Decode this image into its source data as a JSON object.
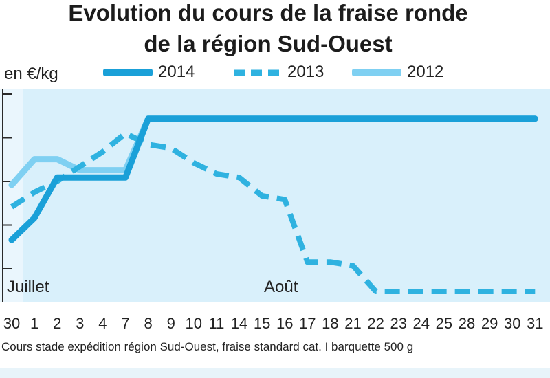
{
  "colors": {
    "s2014": "#1aa0d8",
    "s2013": "#2fb2e0",
    "s2012": "#7fd0f2",
    "plot_bg": "#d9f0fb",
    "gridline": "#2a2a2a"
  },
  "chart_data": {
    "type": "line",
    "title": "Evolution du cours de la fraise ronde de la région Sud-Ouest",
    "title_lines": [
      "Evolution du cours de la fraise ronde",
      "de la région Sud-Ouest"
    ],
    "ylabel": "en €/kg",
    "note": "Cours stade expédition région Sud-Ouest, fraise standard cat. I barquette 500 g",
    "month_labels": [
      {
        "label": "Juillet",
        "at": "30"
      },
      {
        "label": "Août",
        "at": "15"
      }
    ],
    "categories": [
      "30",
      "1",
      "2",
      "3",
      "4",
      "7",
      "8",
      "9",
      "10",
      "11",
      "14",
      "15",
      "16",
      "17",
      "18",
      "21",
      "22",
      "23",
      "24",
      "25",
      "28",
      "29",
      "30",
      "31"
    ],
    "y_tick_count": 5,
    "grid": false,
    "legend_position": "top",
    "series": [
      {
        "name": "2014",
        "style": "solid",
        "color_key": "s2014",
        "values": [
          1.7,
          2.3,
          3.4,
          3.4,
          3.4,
          3.4,
          5.0,
          5.0,
          5.0,
          5.0,
          5.0,
          5.0,
          5.0,
          5.0,
          5.0,
          5.0,
          5.0,
          5.0,
          5.0,
          5.0,
          5.0,
          5.0,
          5.0,
          5.0
        ]
      },
      {
        "name": "2013",
        "style": "dashed",
        "color_key": "s2013",
        "values": [
          2.6,
          3.0,
          3.3,
          3.7,
          4.1,
          4.6,
          4.3,
          4.2,
          3.8,
          3.5,
          3.4,
          2.9,
          2.8,
          1.1,
          1.1,
          1.0,
          0.3,
          0.3,
          0.3,
          0.3,
          0.3,
          0.3,
          0.3,
          0.3
        ]
      },
      {
        "name": "2012",
        "style": "solid",
        "color_key": "s2012",
        "values": [
          3.2,
          3.9,
          3.9,
          3.6,
          3.6,
          3.6,
          5.0,
          5.0,
          5.0,
          5.0,
          5.0,
          5.0,
          5.0,
          5.0,
          5.0,
          5.0,
          5.0,
          5.0,
          5.0,
          5.0,
          5.0,
          5.0,
          5.0,
          5.0
        ]
      }
    ]
  }
}
